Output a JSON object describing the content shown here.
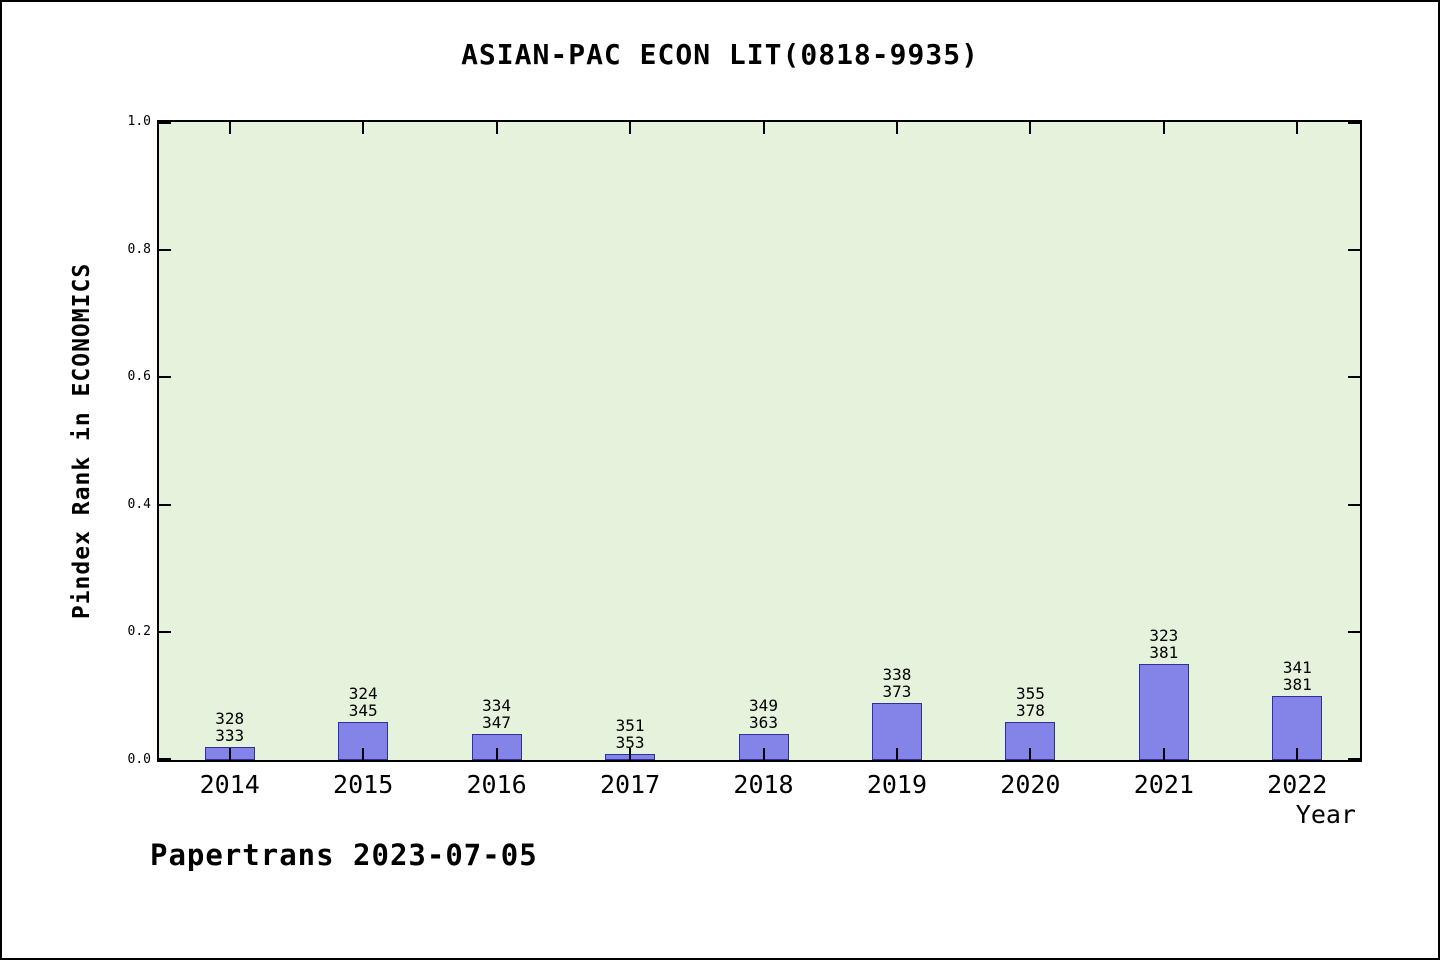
{
  "footer": "Papertrans 2023-07-05",
  "chart_data": {
    "type": "bar",
    "title": "ASIAN-PAC ECON LIT(0818-9935)",
    "xlabel": "Year",
    "ylabel": "Pindex Rank in ECONOMICS",
    "categories": [
      "2014",
      "2015",
      "2016",
      "2017",
      "2018",
      "2019",
      "2020",
      "2021",
      "2022"
    ],
    "values": [
      0.02,
      0.06,
      0.04,
      0.01,
      0.04,
      0.09,
      0.06,
      0.15,
      0.1
    ],
    "bar_labels": [
      [
        "328",
        "333"
      ],
      [
        "324",
        "345"
      ],
      [
        "334",
        "347"
      ],
      [
        "351",
        "353"
      ],
      [
        "349",
        "363"
      ],
      [
        "338",
        "373"
      ],
      [
        "355",
        "378"
      ],
      [
        "323",
        "381"
      ],
      [
        "341",
        "381"
      ]
    ],
    "ylim": [
      0,
      1
    ],
    "yticks": [
      0.0,
      0.2,
      0.4,
      0.6,
      0.8,
      1.0
    ],
    "ytick_labels": [
      "0.0",
      "0.2",
      "0.4",
      "0.6",
      "0.8",
      "1.0"
    ],
    "grid": false,
    "legend": "none",
    "colors": {
      "plot_bg": "#e5f2dc",
      "bar_fill": "#8484e8",
      "bar_border": "#30309a"
    }
  }
}
